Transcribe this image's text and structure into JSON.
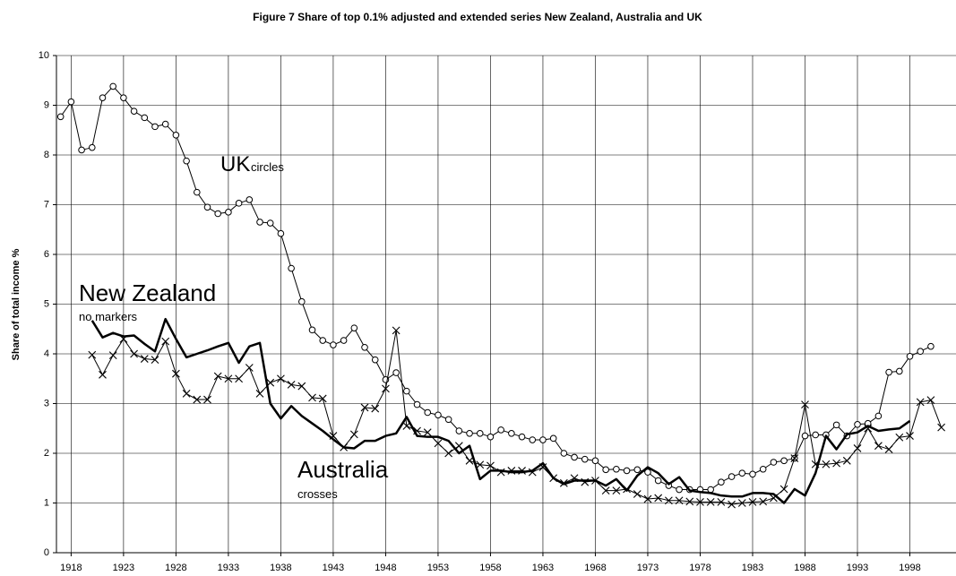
{
  "chart_data": {
    "type": "line",
    "title": "Figure 7 Share of top 0.1% adjusted and extended series New Zealand, Australia and UK",
    "y_label": "Share of total income %",
    "annotations": [
      "UK",
      "circles",
      "New Zealand",
      "no markers",
      "Australia",
      "crosses"
    ],
    "x": [
      1917,
      1918,
      1919,
      1920,
      1921,
      1922,
      1923,
      1924,
      1925,
      1926,
      1927,
      1928,
      1929,
      1930,
      1931,
      1932,
      1933,
      1934,
      1935,
      1936,
      1937,
      1938,
      1939,
      1940,
      1941,
      1942,
      1943,
      1944,
      1945,
      1946,
      1947,
      1948,
      1949,
      1950,
      1951,
      1952,
      1953,
      1954,
      1955,
      1956,
      1957,
      1958,
      1959,
      1960,
      1961,
      1962,
      1963,
      1964,
      1965,
      1966,
      1967,
      1968,
      1969,
      1970,
      1971,
      1972,
      1973,
      1974,
      1975,
      1976,
      1977,
      1978,
      1979,
      1980,
      1981,
      1982,
      1983,
      1984,
      1985,
      1986,
      1987,
      1988,
      1989,
      1990,
      1991,
      1992,
      1993,
      1994,
      1995,
      1996,
      1997,
      1998,
      1999,
      2000,
      2001
    ],
    "xlim": [
      1916.6,
      2002.4
    ],
    "xticks": [
      1918,
      1923,
      1928,
      1933,
      1938,
      1943,
      1948,
      1953,
      1958,
      1963,
      1968,
      1973,
      1978,
      1983,
      1988,
      1993,
      1998
    ],
    "ylim": [
      0,
      10
    ],
    "yticks": [
      0,
      1,
      2,
      3,
      4,
      5,
      6,
      7,
      8,
      9,
      10
    ],
    "grid": true,
    "series": [
      {
        "name": "UK",
        "color": "#000000",
        "marker": "circle",
        "line_width": 1,
        "values": [
          8.77,
          9.07,
          8.1,
          8.15,
          9.15,
          9.38,
          9.15,
          8.88,
          8.75,
          8.57,
          8.62,
          8.4,
          7.88,
          7.25,
          6.95,
          6.82,
          6.85,
          7.03,
          7.1,
          6.65,
          6.63,
          6.42,
          5.72,
          5.05,
          4.48,
          4.27,
          4.18,
          4.27,
          4.52,
          4.13,
          3.88,
          3.48,
          3.62,
          3.25,
          2.98,
          2.82,
          2.77,
          2.68,
          2.45,
          2.4,
          2.4,
          2.33,
          2.47,
          2.4,
          2.33,
          2.27,
          2.27,
          2.3,
          2.0,
          1.92,
          1.88,
          1.85,
          1.67,
          1.68,
          1.65,
          1.67,
          1.62,
          1.45,
          1.35,
          1.27,
          1.27,
          1.27,
          1.27,
          1.42,
          1.53,
          1.6,
          1.58,
          1.68,
          1.82,
          1.85,
          1.9,
          2.35,
          2.37,
          2.37,
          2.57,
          2.35,
          2.58,
          2.6,
          2.75,
          3.63,
          3.65,
          3.95,
          4.05,
          4.15,
          null
        ]
      },
      {
        "name": "New Zealand",
        "color": "#000000",
        "marker": "none",
        "line_width": 2.5,
        "values": [
          null,
          null,
          null,
          4.67,
          4.33,
          4.42,
          4.35,
          4.37,
          4.2,
          4.05,
          4.7,
          4.3,
          3.93,
          4.0,
          4.07,
          4.15,
          4.22,
          3.82,
          4.15,
          4.22,
          3.0,
          2.7,
          2.95,
          2.75,
          2.6,
          2.45,
          2.28,
          2.12,
          2.1,
          2.25,
          2.25,
          2.35,
          2.4,
          2.73,
          2.35,
          2.33,
          2.33,
          2.25,
          2.0,
          2.15,
          1.48,
          1.65,
          1.65,
          1.62,
          1.62,
          1.65,
          1.8,
          1.5,
          1.38,
          1.45,
          1.45,
          1.45,
          1.35,
          1.48,
          1.25,
          1.55,
          1.72,
          1.6,
          1.38,
          1.52,
          1.25,
          1.22,
          1.2,
          1.15,
          1.13,
          1.13,
          1.2,
          1.2,
          1.18,
          1.0,
          1.28,
          1.15,
          1.6,
          2.35,
          2.08,
          2.38,
          2.42,
          2.55,
          2.45,
          2.48,
          2.5,
          2.65,
          null,
          null,
          null
        ]
      },
      {
        "name": "Australia",
        "color": "#000000",
        "marker": "cross",
        "line_width": 1,
        "values": [
          null,
          null,
          null,
          3.98,
          3.58,
          3.97,
          4.3,
          4.0,
          3.9,
          3.88,
          4.25,
          3.6,
          3.2,
          3.08,
          3.08,
          3.55,
          3.5,
          3.5,
          3.72,
          3.2,
          3.42,
          3.5,
          3.38,
          3.35,
          3.12,
          3.1,
          2.35,
          2.12,
          2.38,
          2.92,
          2.9,
          3.3,
          4.47,
          2.55,
          2.45,
          2.42,
          2.2,
          2.0,
          2.15,
          1.85,
          1.77,
          1.75,
          1.62,
          1.65,
          1.65,
          1.62,
          1.72,
          1.5,
          1.4,
          1.5,
          1.42,
          1.45,
          1.25,
          1.25,
          1.28,
          1.18,
          1.08,
          1.1,
          1.05,
          1.05,
          1.03,
          1.02,
          1.02,
          1.02,
          0.97,
          1.0,
          1.02,
          1.03,
          1.1,
          1.28,
          1.9,
          2.98,
          1.78,
          1.78,
          1.8,
          1.85,
          2.1,
          2.5,
          2.15,
          2.08,
          2.32,
          2.35,
          3.03,
          3.07,
          2.52
        ]
      }
    ]
  }
}
